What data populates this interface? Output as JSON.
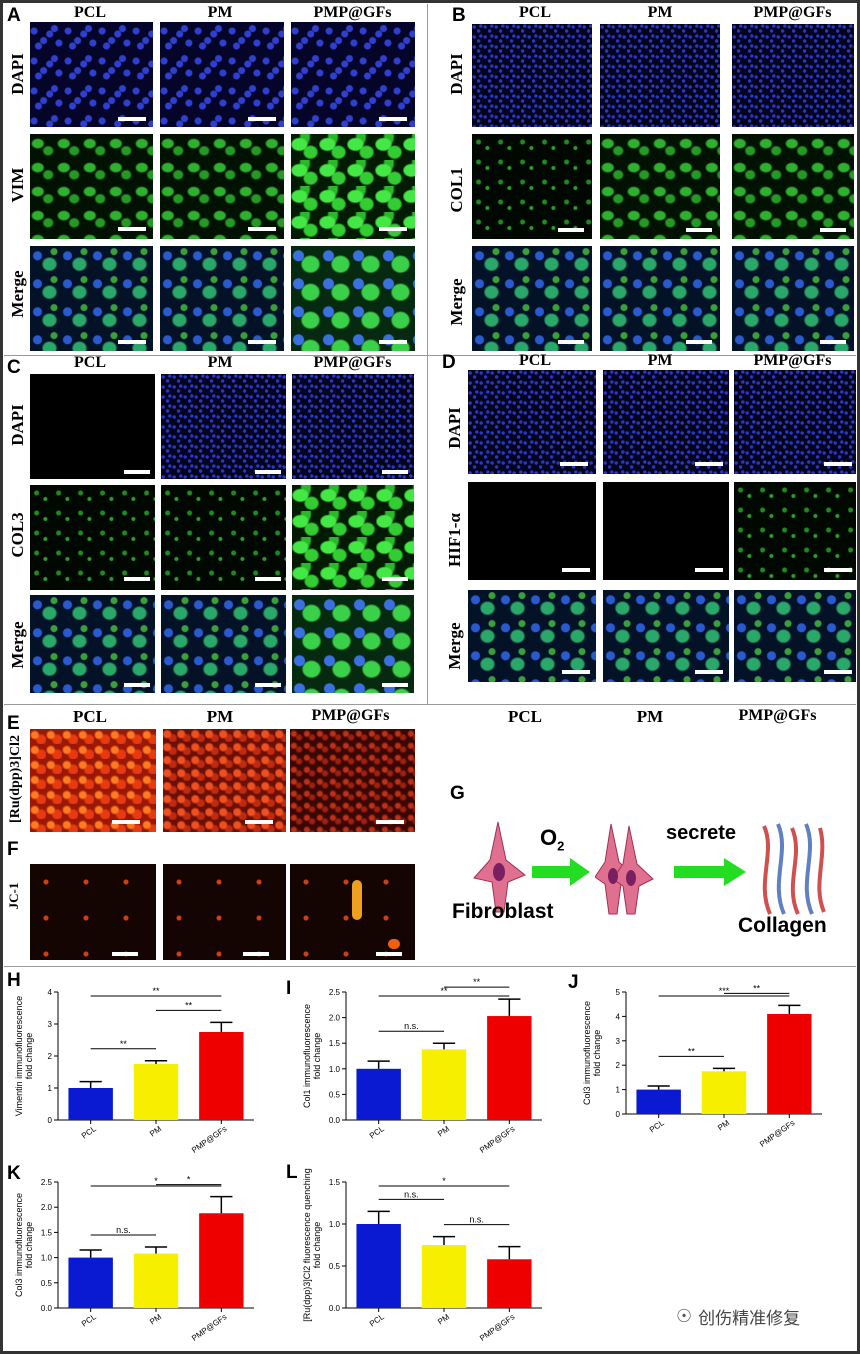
{
  "panel_letters": [
    "A",
    "B",
    "C",
    "D",
    "E",
    "F",
    "G",
    "H",
    "I",
    "J",
    "K",
    "L"
  ],
  "groups": [
    "PCL",
    "PM",
    "PMP@GFs"
  ],
  "panelA": {
    "rows": [
      "DAPI",
      "VIM",
      "Merge"
    ]
  },
  "panelB": {
    "rows": [
      "DAPI",
      "COL1",
      "Merge"
    ]
  },
  "panelC": {
    "rows": [
      "DAPI",
      "COL3",
      "Merge"
    ]
  },
  "panelD": {
    "rows": [
      "DAPI",
      "HIF1-α",
      "Merge"
    ]
  },
  "panelE": {
    "row": "[Ru(dpp)3]Cl2"
  },
  "panelF": {
    "row": "JC-1"
  },
  "panelG": {
    "o2": "O",
    "o2_sub": "2",
    "secrete": "secrete",
    "fibroblast": "Fibroblast",
    "collagen": "Collagen"
  },
  "colors": {
    "PCL": "#0a1ad2",
    "PM": "#f7ef00",
    "PMP@GFs": "#ef0000"
  },
  "watermark": "创伤精准修复",
  "chart_data": [
    {
      "id": "H",
      "type": "bar",
      "categories": [
        "PCL",
        "PM",
        "PMP@GFs"
      ],
      "values": [
        1.0,
        1.75,
        2.75
      ],
      "errors": [
        0.2,
        0.1,
        0.3
      ],
      "ylabel": "Vimentin immunofluorescence fold change",
      "ylim": [
        0,
        4
      ],
      "yticks": [
        "0",
        "1",
        "2",
        "3",
        "4"
      ],
      "sig": [
        {
          "from": 0,
          "to": 1,
          "label": "**"
        },
        {
          "from": 1,
          "to": 2,
          "label": "**"
        },
        {
          "from": 0,
          "to": 2,
          "label": "**"
        }
      ]
    },
    {
      "id": "I",
      "type": "bar",
      "categories": [
        "PCL",
        "PM",
        "PMP@GFs"
      ],
      "values": [
        1.0,
        1.38,
        2.03
      ],
      "errors": [
        0.15,
        0.12,
        0.33
      ],
      "ylabel": "Col1 immunofluorescence fold change",
      "ylim": [
        0,
        2.5
      ],
      "yticks": [
        "0.0",
        "0.5",
        "1.0",
        "1.5",
        "2.0",
        "2.5"
      ],
      "sig": [
        {
          "from": 0,
          "to": 1,
          "label": "n.s."
        },
        {
          "from": 1,
          "to": 2,
          "label": "**"
        },
        {
          "from": 0,
          "to": 2,
          "label": "**"
        }
      ]
    },
    {
      "id": "J",
      "type": "bar",
      "categories": [
        "PCL",
        "PM",
        "PMP@GFs"
      ],
      "values": [
        1.0,
        1.75,
        4.1
      ],
      "errors": [
        0.15,
        0.12,
        0.35
      ],
      "ylabel": "Col3 immunofluorescence fold change",
      "ylim": [
        0,
        5
      ],
      "yticks": [
        "0",
        "1",
        "2",
        "3",
        "4",
        "5"
      ],
      "sig": [
        {
          "from": 0,
          "to": 1,
          "label": "**"
        },
        {
          "from": 1,
          "to": 2,
          "label": "**"
        },
        {
          "from": 0,
          "to": 2,
          "label": "***"
        }
      ]
    },
    {
      "id": "K",
      "type": "bar",
      "categories": [
        "PCL",
        "PM",
        "PMP@GFs"
      ],
      "values": [
        1.0,
        1.08,
        1.88
      ],
      "errors": [
        0.15,
        0.13,
        0.33
      ],
      "ylabel": "Col3 immunofluorescence fold change",
      "ylim": [
        0,
        2.5
      ],
      "yticks": [
        "0.0",
        "0.5",
        "1.0",
        "1.5",
        "2.0",
        "2.5"
      ],
      "sig": [
        {
          "from": 0,
          "to": 1,
          "label": "n.s."
        },
        {
          "from": 1,
          "to": 2,
          "label": "*"
        },
        {
          "from": 0,
          "to": 2,
          "label": "*"
        }
      ]
    },
    {
      "id": "L",
      "type": "bar",
      "categories": [
        "PCL",
        "PM",
        "PMP@GFs"
      ],
      "values": [
        1.0,
        0.75,
        0.58
      ],
      "errors": [
        0.15,
        0.1,
        0.15
      ],
      "ylabel": "[Ru(dpp)3]Cl2 fluorescence quenching fold change",
      "ylim": [
        0,
        1.5
      ],
      "yticks": [
        "0.0",
        "0.5",
        "1.0",
        "1.5"
      ],
      "sig": [
        {
          "from": 0,
          "to": 1,
          "label": "n.s."
        },
        {
          "from": 1,
          "to": 2,
          "label": "n.s."
        },
        {
          "from": 0,
          "to": 2,
          "label": "*"
        }
      ]
    }
  ]
}
